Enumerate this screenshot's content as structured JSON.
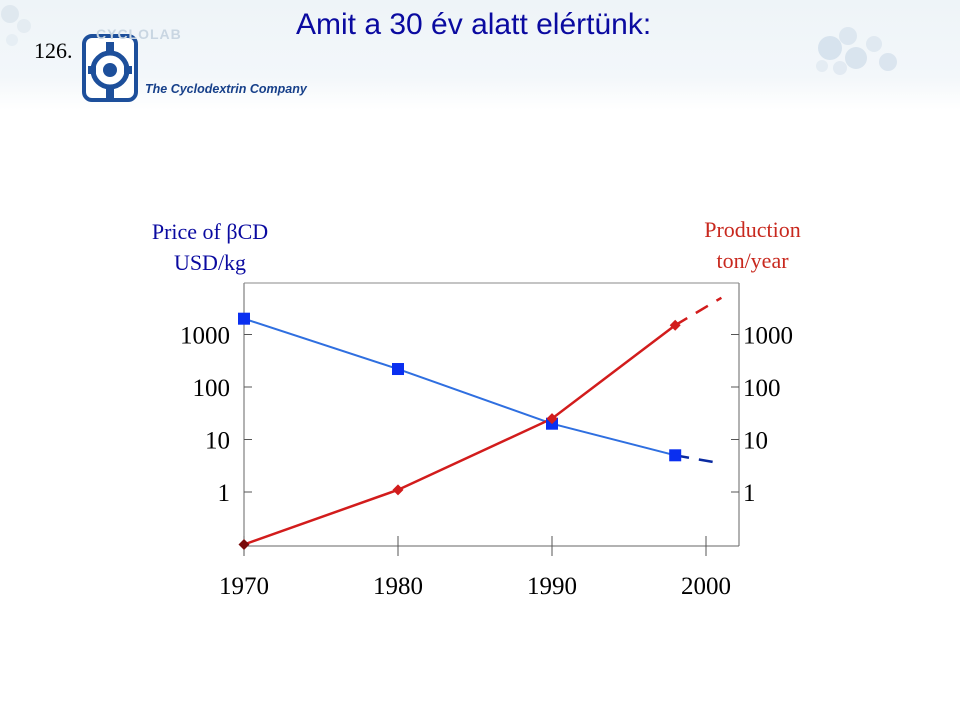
{
  "slide_number": "126.",
  "title": "Amit a 30 év alatt elértünk:",
  "logo": {
    "wordmark": "CYCLOLAB",
    "tagline": "The Cyclodextrin Company",
    "emblem_icon": "cyclodextrin-ring-icon"
  },
  "chart_data": {
    "type": "line",
    "x": [
      1970,
      1980,
      1990,
      2000
    ],
    "left_axis": {
      "label_line1": "Price of βCD",
      "label_line2": "USD/kg",
      "scale": "log",
      "ticks": [
        "1",
        "10",
        "100",
        "1000"
      ]
    },
    "right_axis": {
      "label_line1": "Production",
      "label_line2": "ton/year",
      "scale": "log",
      "ticks": [
        "1",
        "10",
        "100",
        "1000"
      ]
    },
    "x_ticks": [
      "1970",
      "1980",
      "1990",
      "2000"
    ],
    "series": [
      {
        "axis": "left",
        "color": "#2f6fe0",
        "marker": "square",
        "marker_color": "#0a2ff0",
        "x": [
          1970,
          1980,
          1990,
          1998
        ],
        "y": [
          2000,
          220,
          20,
          5
        ],
        "projection": {
          "x": [
            1998,
            2001
          ],
          "y": [
            5,
            3.5
          ]
        }
      },
      {
        "axis": "right",
        "color": "#d21c1c",
        "marker": "diamond",
        "marker_color": "#d21c1c",
        "x": [
          1970,
          1980,
          1990,
          1998
        ],
        "y": [
          0.1,
          1.1,
          25,
          1500
        ],
        "projection": {
          "x": [
            1998,
            2001
          ],
          "y": [
            1500,
            5000
          ]
        }
      }
    ],
    "grid": false
  }
}
